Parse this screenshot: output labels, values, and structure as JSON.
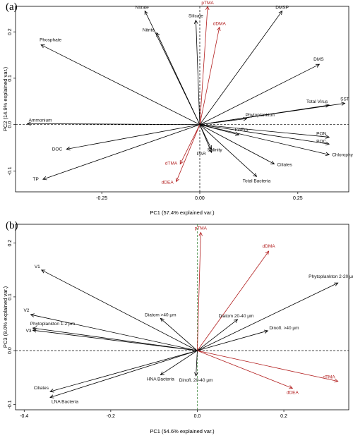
{
  "chart_data": [
    {
      "type": "scatter",
      "panel": "(a)",
      "xlabel": "PC1 (57.4% explained var.)",
      "ylabel": "PC2 (14.9% explained var.)",
      "xlim": [
        -0.47,
        0.38
      ],
      "ylim": [
        -0.145,
        0.255
      ],
      "xticks": [
        -0.25,
        0.0,
        0.25
      ],
      "xtick_labels": [
        "-0.25",
        "0.00",
        "0.25"
      ],
      "yticks": [
        -0.1,
        0.0,
        0.1,
        0.2
      ],
      "ytick_labels": [
        "-0.1",
        "0.0",
        "0.1",
        "0.2"
      ],
      "vectors": [
        {
          "label": "Nitrate",
          "x": -0.14,
          "y": 0.245,
          "color": "black"
        },
        {
          "label": "Nitrite",
          "x": -0.11,
          "y": 0.198,
          "color": "black"
        },
        {
          "label": "Silicate",
          "x": -0.01,
          "y": 0.225,
          "color": "black"
        },
        {
          "label": "pTMA",
          "x": 0.02,
          "y": 0.255,
          "color": "red"
        },
        {
          "label": "dDMA",
          "x": 0.05,
          "y": 0.21,
          "color": "red"
        },
        {
          "label": "DMSP",
          "x": 0.21,
          "y": 0.245,
          "color": "black"
        },
        {
          "label": "Phosphate",
          "x": -0.405,
          "y": 0.172,
          "color": "black"
        },
        {
          "label": "DMS",
          "x": 0.305,
          "y": 0.13,
          "color": "black"
        },
        {
          "label": "Total Virus",
          "x": 0.33,
          "y": 0.042,
          "color": "black"
        },
        {
          "label": "SST",
          "x": 0.37,
          "y": 0.046,
          "color": "black"
        },
        {
          "label": "Phytoplankton",
          "x": 0.12,
          "y": 0.013,
          "color": "black"
        },
        {
          "label": "Ammonium",
          "x": -0.44,
          "y": 0.002,
          "color": "black"
        },
        {
          "label": "Fv/Fm",
          "x": 0.1,
          "y": -0.022,
          "color": "black"
        },
        {
          "label": "PON",
          "x": 0.33,
          "y": -0.027,
          "color": "black"
        },
        {
          "label": "POC",
          "x": 0.33,
          "y": -0.042,
          "color": "black"
        },
        {
          "label": "Chlorophyll-a",
          "x": 0.33,
          "y": -0.065,
          "color": "black"
        },
        {
          "label": "DOC",
          "x": -0.34,
          "y": -0.053,
          "color": "black"
        },
        {
          "label": "Salinity",
          "x": 0.03,
          "y": -0.053,
          "color": "black"
        },
        {
          "label": "Ciliates",
          "x": 0.19,
          "y": -0.085,
          "color": "black"
        },
        {
          "label": "PAR",
          "x": 0.03,
          "y": -0.06,
          "color": "black"
        },
        {
          "label": "dTMA",
          "x": -0.05,
          "y": -0.085,
          "color": "red"
        },
        {
          "label": "TP",
          "x": -0.4,
          "y": -0.118,
          "color": "black"
        },
        {
          "label": "dDEA",
          "x": -0.06,
          "y": -0.123,
          "color": "red"
        },
        {
          "label": "Total Bacteria",
          "x": 0.145,
          "y": -0.112,
          "color": "black"
        }
      ]
    },
    {
      "type": "scatter",
      "panel": "(b)",
      "xlabel": "PC1 (54.6% explained var.)",
      "ylabel": "PC3 (8.0% explained var.)",
      "xlim": [
        -0.42,
        0.35
      ],
      "ylim": [
        -0.11,
        0.235
      ],
      "xticks": [
        -0.4,
        -0.2,
        0.0,
        0.2
      ],
      "xtick_labels": [
        "-0.4",
        "-0.2",
        "0.0",
        "0.2"
      ],
      "yticks": [
        -0.1,
        0.0,
        0.1,
        0.2
      ],
      "ytick_labels": [
        "-0.1",
        "0.0",
        "0.1",
        "0.2"
      ],
      "vectors": [
        {
          "label": "pTMA",
          "x": 0.008,
          "y": 0.22,
          "color": "red"
        },
        {
          "label": "dDMA",
          "x": 0.165,
          "y": 0.185,
          "color": "red"
        },
        {
          "label": "Phytoplankton 2-20 μm",
          "x": 0.325,
          "y": 0.126,
          "color": "black"
        },
        {
          "label": "V1",
          "x": -0.36,
          "y": 0.15,
          "color": "black"
        },
        {
          "label": "Diatom >40 μm",
          "x": -0.085,
          "y": 0.06,
          "color": "black"
        },
        {
          "label": "Diatom 20-40 μm",
          "x": 0.093,
          "y": 0.058,
          "color": "black"
        },
        {
          "label": "Dinofl. >40 μm",
          "x": 0.163,
          "y": 0.037,
          "color": "black"
        },
        {
          "label": "V2",
          "x": -0.385,
          "y": 0.067,
          "color": "black"
        },
        {
          "label": "Phytoplankton 1-2 μm",
          "x": -0.38,
          "y": 0.042,
          "color": "black"
        },
        {
          "label": "V3",
          "x": -0.38,
          "y": 0.038,
          "color": "black"
        },
        {
          "label": "HNA Bacteria",
          "x": -0.085,
          "y": -0.045,
          "color": "black"
        },
        {
          "label": "Dinofl. 20-40 μm",
          "x": -0.003,
          "y": -0.047,
          "color": "black"
        },
        {
          "label": "dTMA",
          "x": 0.325,
          "y": -0.057,
          "color": "red"
        },
        {
          "label": "dDEA",
          "x": 0.22,
          "y": -0.07,
          "color": "red"
        },
        {
          "label": "Ciliates",
          "x": -0.34,
          "y": -0.076,
          "color": "black"
        },
        {
          "label": "LNA Bacteria",
          "x": -0.34,
          "y": -0.087,
          "color": "black"
        }
      ]
    }
  ]
}
